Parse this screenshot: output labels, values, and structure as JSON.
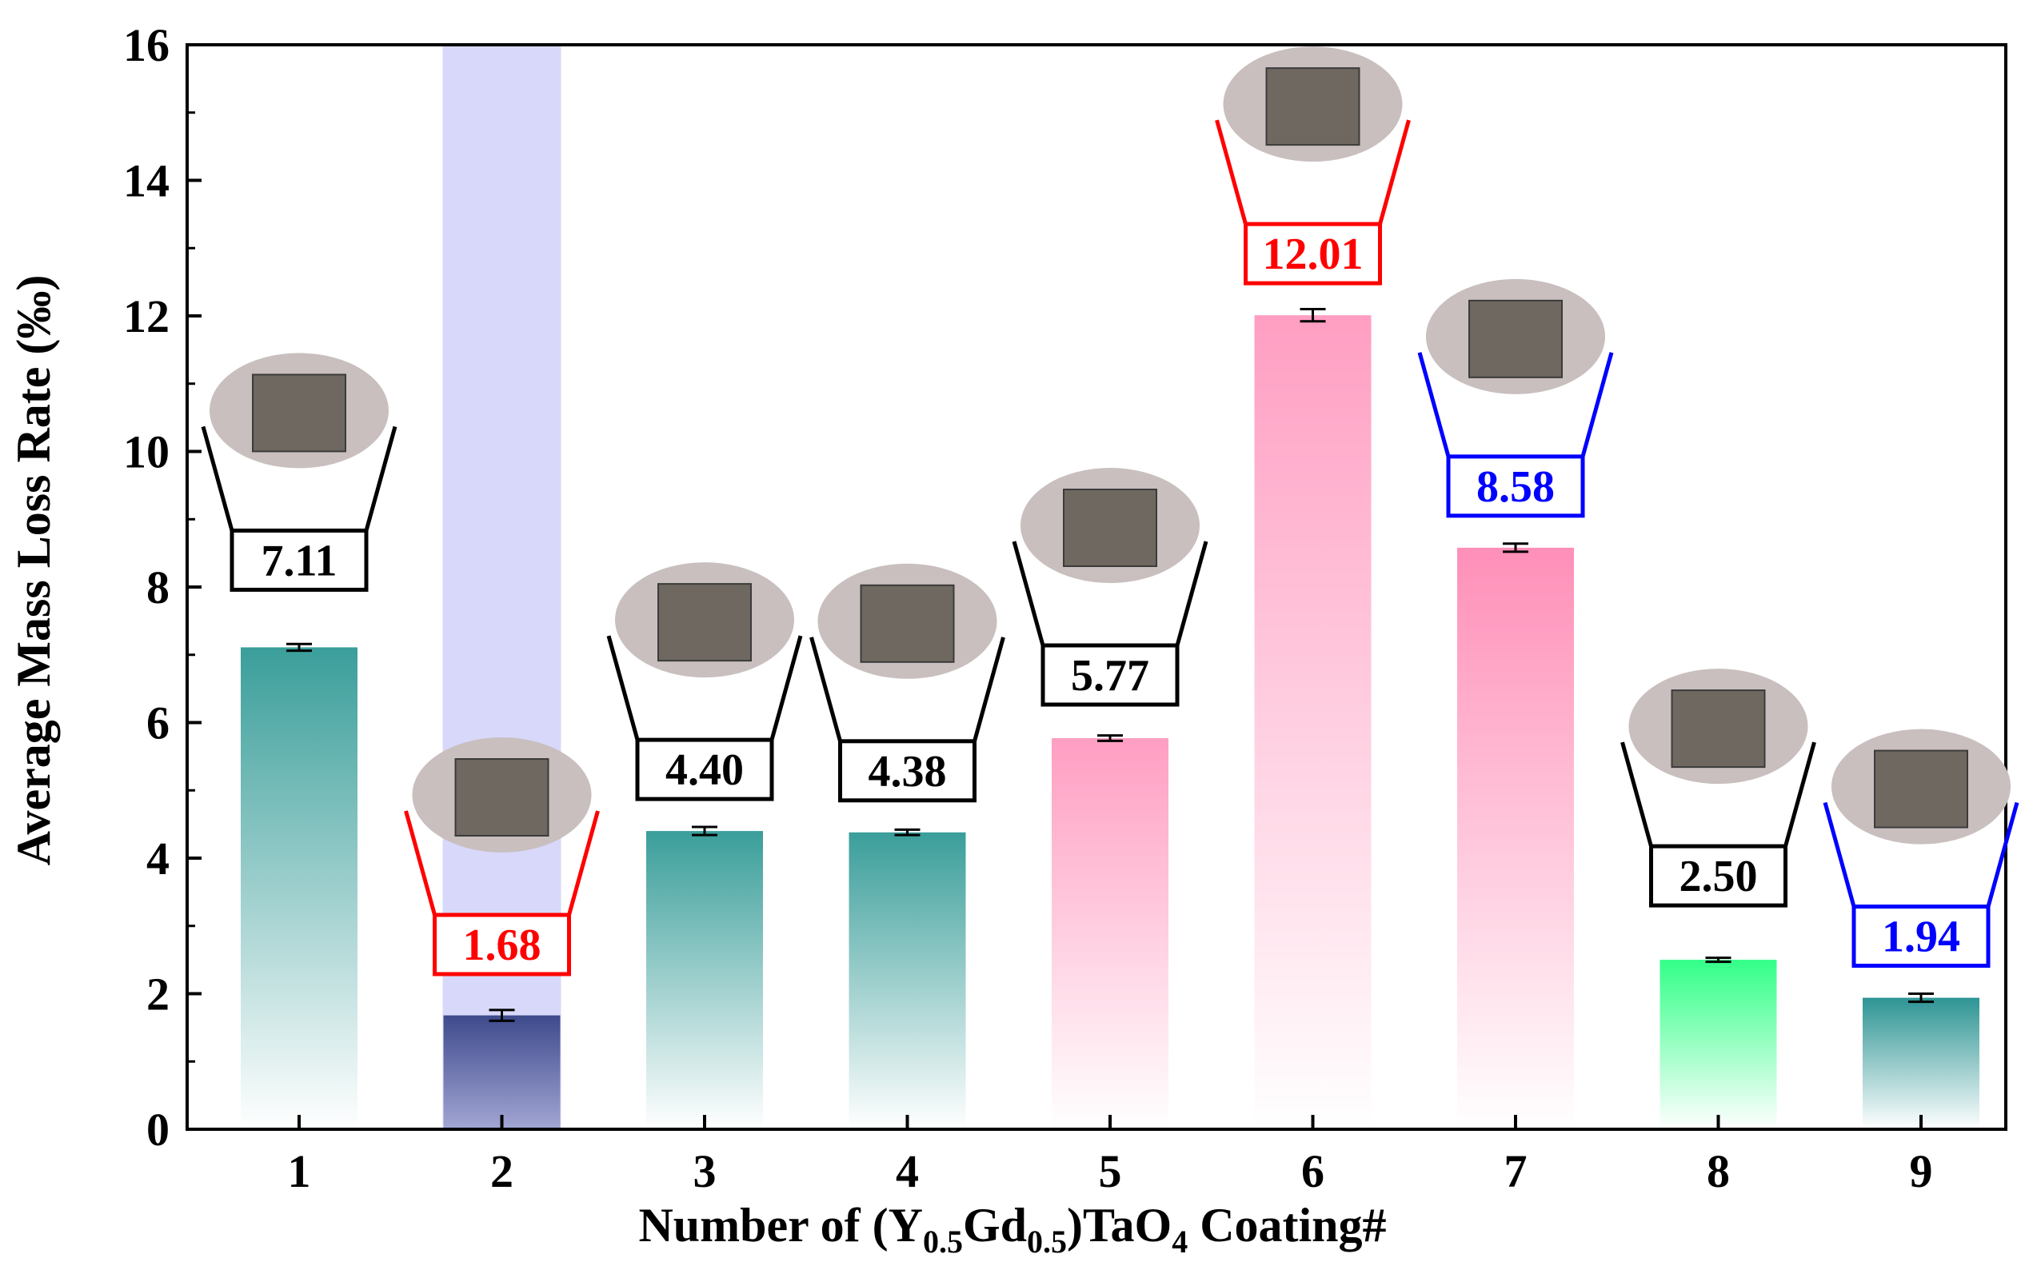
{
  "chart_data": {
    "type": "bar",
    "title": "",
    "xlabel": {
      "parts": [
        "Number of (Y",
        "0.5",
        "Gd",
        "0.5",
        ")TaO",
        "4",
        " Coating#"
      ]
    },
    "ylabel": "Average Mass Loss Rate (‰)",
    "ylim": [
      0,
      16
    ],
    "yticks": [
      0,
      2,
      4,
      6,
      8,
      10,
      12,
      14,
      16
    ],
    "categories": [
      "1",
      "2",
      "3",
      "4",
      "5",
      "6",
      "7",
      "8",
      "9"
    ],
    "values": [
      7.11,
      1.68,
      4.4,
      4.38,
      5.77,
      12.01,
      8.58,
      2.5,
      1.94
    ],
    "errors": [
      0.05,
      0.08,
      0.06,
      0.04,
      0.04,
      0.09,
      0.06,
      0.03,
      0.06
    ],
    "value_labels": [
      "7.11",
      "1.68",
      "4.40",
      "4.38",
      "5.77",
      "12.01",
      "8.58",
      "2.50",
      "1.94"
    ],
    "label_colors": [
      "#000000",
      "#ff0000",
      "#000000",
      "#000000",
      "#000000",
      "#ff0000",
      "#0000ff",
      "#000000",
      "#0000ff"
    ],
    "bar_colors": [
      "#3a9e9a",
      "#3e4a8c",
      "#3a9e9a",
      "#3a9e9a",
      "#ff9ec2",
      "#ff9ec2",
      "#ff8fb8",
      "#33ff88",
      "#2e9494"
    ],
    "highlight": {
      "category": "2",
      "color": "#b8b8f6"
    }
  }
}
